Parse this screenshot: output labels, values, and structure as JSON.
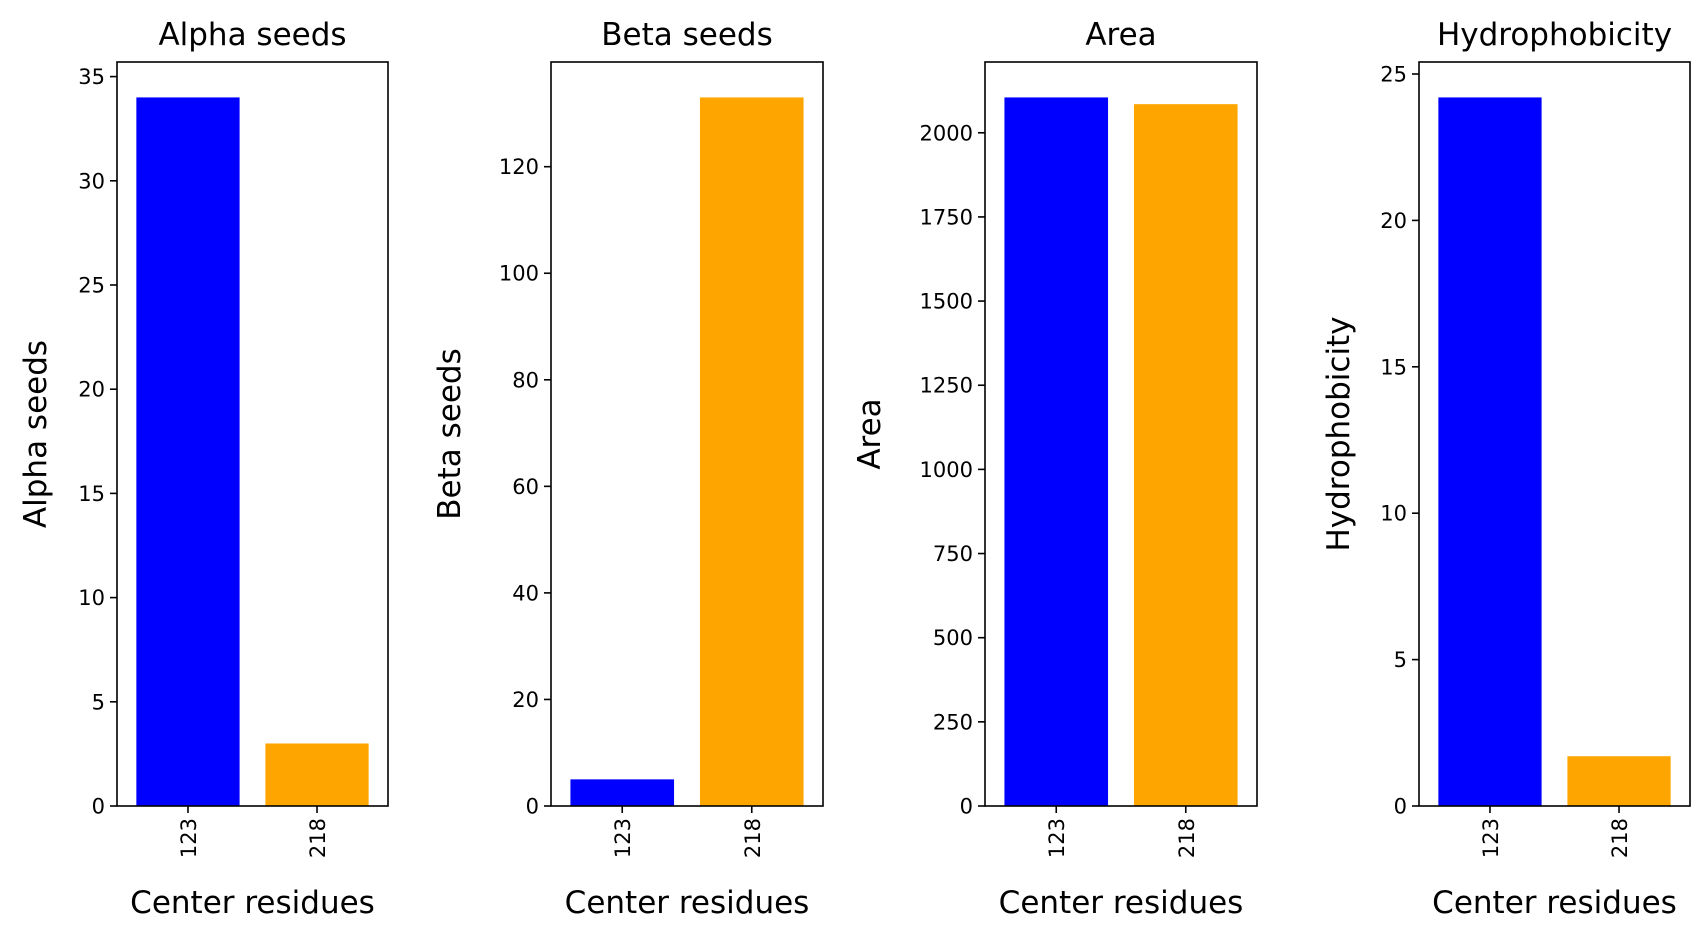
{
  "colors": {
    "series_123": "#0000ff",
    "series_218": "#ffa500",
    "axis": "#000000",
    "background": "#ffffff"
  },
  "chart_data": [
    {
      "type": "bar",
      "title": "Alpha seeds",
      "xlabel": "Center residues",
      "ylabel": "Alpha seeds",
      "categories": [
        "123",
        "218"
      ],
      "values": [
        34,
        3
      ],
      "colors": [
        "#0000ff",
        "#ffa500"
      ],
      "ylim": [
        0,
        35.7
      ],
      "yticks": [
        0,
        5,
        10,
        15,
        20,
        25,
        30,
        35
      ],
      "ytick_labels": [
        "0",
        "5",
        "10",
        "15",
        "20",
        "25",
        "30",
        "35"
      ],
      "grid": false
    },
    {
      "type": "bar",
      "title": "Beta seeds",
      "xlabel": "Center residues",
      "ylabel": "Beta seeds",
      "categories": [
        "123",
        "218"
      ],
      "values": [
        5,
        133
      ],
      "colors": [
        "#0000ff",
        "#ffa500"
      ],
      "ylim": [
        0,
        139.65
      ],
      "yticks": [
        0,
        20,
        40,
        60,
        80,
        100,
        120
      ],
      "ytick_labels": [
        "0",
        "20",
        "40",
        "60",
        "80",
        "100",
        "120"
      ],
      "grid": false
    },
    {
      "type": "bar",
      "title": "Area",
      "xlabel": "Center residues",
      "ylabel": "Area",
      "categories": [
        "123",
        "218"
      ],
      "values": [
        2105,
        2085
      ],
      "colors": [
        "#0000ff",
        "#ffa500"
      ],
      "ylim": [
        0,
        2210.25
      ],
      "yticks": [
        0,
        250,
        500,
        750,
        1000,
        1250,
        1500,
        1750,
        2000
      ],
      "ytick_labels": [
        "0",
        "250",
        "500",
        "750",
        "1000",
        "1250",
        "1500",
        "1750",
        "2000"
      ],
      "grid": false
    },
    {
      "type": "bar",
      "title": "Hydrophobicity",
      "xlabel": "Center residues",
      "ylabel": "Hydrophobicity",
      "categories": [
        "123",
        "218"
      ],
      "values": [
        24.2,
        1.7
      ],
      "colors": [
        "#0000ff",
        "#ffa500"
      ],
      "ylim": [
        0,
        25.41
      ],
      "yticks": [
        0,
        5,
        10,
        15,
        20,
        25
      ],
      "ytick_labels": [
        "0",
        "5",
        "10",
        "15",
        "20",
        "25"
      ],
      "grid": false
    }
  ]
}
